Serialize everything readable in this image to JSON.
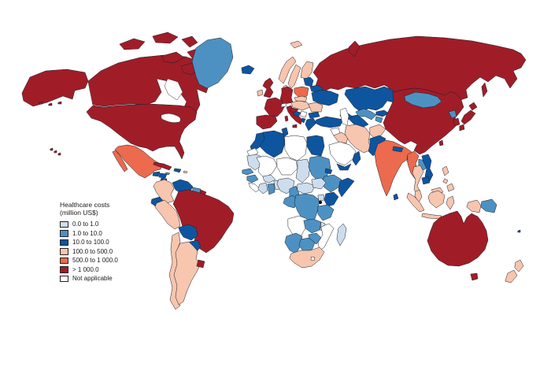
{
  "figure": {
    "background": "#ffffff"
  },
  "legend": {
    "title_line1": "Healthcare costs",
    "title_line2": "(million US$)",
    "items": [
      {
        "key": "c1",
        "label": "0.0 to 1.0",
        "color": "#cdddee"
      },
      {
        "key": "c2",
        "label": "1.0 to 10.0",
        "color": "#4d91c3"
      },
      {
        "key": "c3",
        "label": "10.0 to 100.0",
        "color": "#0e559f"
      },
      {
        "key": "c4",
        "label": "100.0 to 500.0",
        "color": "#f8c5ae"
      },
      {
        "key": "c5",
        "label": "500.0 to 1 000.0",
        "color": "#ec6a4e"
      },
      {
        "key": "c6",
        "label": "> 1 000.0",
        "color": "#a01d28"
      },
      {
        "key": "na",
        "label": "Not applicable",
        "color": "#ffffff"
      }
    ]
  },
  "map": {
    "type": "world-choropleth",
    "stroke": "#1c1c24",
    "regions": {
      "canada": "c6",
      "usa": "c6",
      "alaska": "c6",
      "aleutians": "c6",
      "hawaii": "c6",
      "canadian-arctic": "c6",
      "greenland": "c2",
      "iceland": "c3",
      "mexico": "c5",
      "guatemala": "c3",
      "honduras": "c3",
      "nicaragua": "c3",
      "costa-rica": "c3",
      "panama": "c3",
      "cuba": "c6",
      "hispaniola": "c3",
      "jamaica": "c2",
      "puerto-rico": "c4",
      "colombia": "c4",
      "venezuela": "c3",
      "guyana-suriname": "c2",
      "french-guiana": "c6",
      "ecuador": "c3",
      "peru": "c4",
      "brazil": "c6",
      "bolivia": "c3",
      "paraguay": "c3",
      "uruguay": "c6",
      "argentina": "c4",
      "chile": "c4",
      "uk": "c6",
      "ireland": "c4",
      "norway": "c4",
      "sweden": "c4",
      "finland": "c4",
      "denmark": "c4",
      "svalbard": "c4",
      "baltics": "c3",
      "belarus": "c3",
      "poland": "c5",
      "germany": "c6",
      "france": "c6",
      "spain": "c6",
      "italy": "c6",
      "switzerland": "na",
      "czech-slovakia": "c4",
      "austria-hungary": "c4",
      "romania": "c4",
      "ukraine": "c3",
      "croatia": "c6",
      "bosnia": "c3",
      "serbia": "na",
      "albania": "c3",
      "bulgaria": "c3",
      "greece": "c3",
      "russia": "c6",
      "novaya-zemlya": "c6",
      "sakhalin": "c6",
      "kazakhstan": "c3",
      "uzbekistan": "c2",
      "turkmenistan": "c3",
      "kyrgyzstan": "c3",
      "tajikistan": "c2",
      "caucasus": "c3",
      "turkey": "c3",
      "syria": "na",
      "iraq": "c4",
      "iran": "c4",
      "saudi-arabia": "na",
      "yemen": "c3",
      "oman": "c3",
      "afghanistan": "c4",
      "pakistan": "c3",
      "india": "c5",
      "nepal": "c3",
      "bangladesh": "c4",
      "sri-lanka": "c3",
      "china": "c6",
      "mongolia": "c2",
      "north-korea": "c2",
      "south-korea": "c6",
      "japan": "c6",
      "taiwan": "c6",
      "myanmar": "c5",
      "laos": "c2",
      "vietnam": "c3",
      "thailand": "c4",
      "cambodia": "c3",
      "malaysia": "c4",
      "indonesia": "c4",
      "philippines": "c4",
      "png": "c2",
      "fiji": "c3",
      "morocco": "c3",
      "western-sahara": "na",
      "algeria": "c3",
      "tunisia": "c3",
      "libya": "na",
      "egypt": "c3",
      "mauritania": "c1",
      "mali": "na",
      "niger": "na",
      "chad": "c1",
      "sudan": "c2",
      "eritrea": "c3",
      "ethiopia": "c2",
      "somalia": "c3",
      "senegal": "c2",
      "guinea": "c2",
      "sierra-leone-liberia": "na",
      "ivory-coast": "c1",
      "ghana": "c2",
      "burkina": "c1",
      "benin-togo": "c1",
      "nigeria": "c1",
      "cameroon": "c2",
      "car": "c1",
      "south-sudan": "c1",
      "gabon-congo": "c2",
      "drc": "c2",
      "uganda": "c1",
      "kenya": "c3",
      "tanzania": "c2",
      "angola": "na",
      "zambia": "c2",
      "malawi": "c1",
      "mozambique": "na",
      "zimbabwe": "c2",
      "namibia": "c2",
      "botswana": "c2",
      "south-africa": "c4",
      "lesotho": "na",
      "madagascar": "c1",
      "australia": "c6",
      "tasmania": "c6",
      "new-zealand": "c4"
    }
  }
}
